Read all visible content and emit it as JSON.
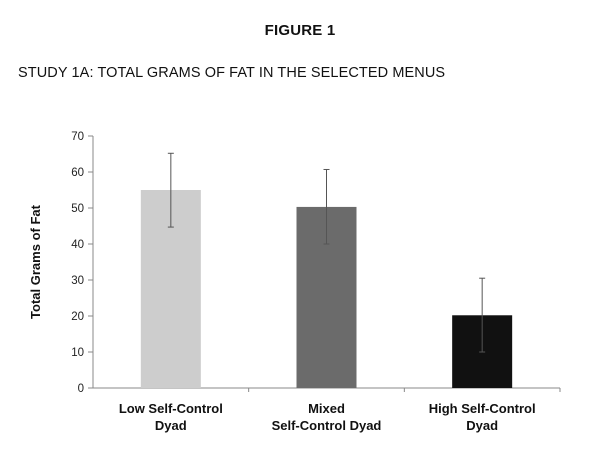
{
  "figure_label": "FIGURE 1",
  "figure_title": "STUDY 1A: TOTAL GRAMS OF FAT IN THE SELECTED MENUS",
  "chart_data": {
    "type": "bar",
    "title": "",
    "xlabel": "",
    "ylabel": "Total Grams of Fat",
    "ylim": [
      0,
      70
    ],
    "yticks": [
      "0",
      "10",
      "20",
      "30",
      "40",
      "50",
      "60",
      "70"
    ],
    "categories": [
      [
        "Low Self-Control",
        "Dyad"
      ],
      [
        "Mixed",
        "Self-Control Dyad"
      ],
      [
        "High Self-Control",
        "Dyad"
      ]
    ],
    "values": [
      55,
      50.3,
      20.2
    ],
    "error_upper": [
      65.2,
      60.7,
      30.5
    ],
    "error_lower": [
      44.7,
      40,
      10
    ],
    "bar_colors": [
      "#cdcdcd",
      "#6b6b6b",
      "#111111"
    ],
    "grid": false
  }
}
